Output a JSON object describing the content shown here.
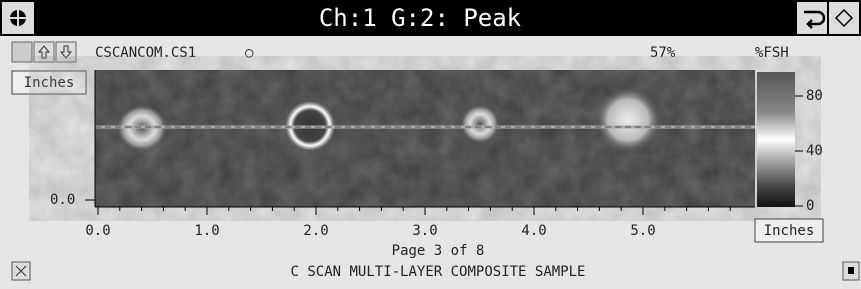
{
  "title_bar": {
    "title": "Ch:1 G:2: Peak"
  },
  "toolbar": {
    "filename": "CSCANCOM.CS1",
    "indicator": "○",
    "percent": "57%",
    "unit": "%FSH"
  },
  "plot": {
    "y_axis_button": "Inches",
    "y_ticks": [
      "0.0"
    ],
    "x_ticks": [
      "0.0",
      "1.0",
      "2.0",
      "3.0",
      "4.0",
      "5.0"
    ],
    "x_axis_button": "Inches"
  },
  "colorbar": {
    "ticks": [
      "80",
      "40",
      "0"
    ]
  },
  "footer": {
    "page": "Page 3 of 8",
    "caption": "C SCAN MULTI-LAYER COMPOSITE SAMPLE"
  }
}
